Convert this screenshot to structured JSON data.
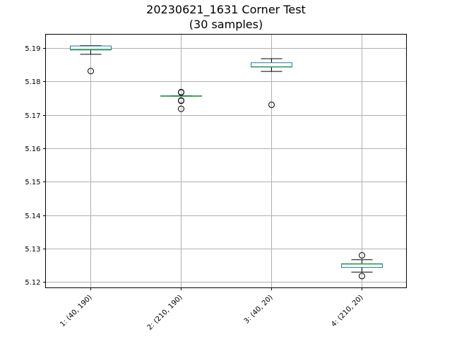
{
  "chart_data": {
    "type": "box",
    "title_line1": "20230621_1631 Corner Test",
    "title_line2": "(30 samples)",
    "categories": [
      "1: (40, 190)",
      "2: (210, 190)",
      "3: (40, 20)",
      "4: (210, 20)"
    ],
    "ylim": [
      5.1183,
      5.1941
    ],
    "yticks": [
      5.12,
      5.13,
      5.14,
      5.15,
      5.16,
      5.17,
      5.18,
      5.19
    ],
    "grid": true,
    "box_color": "#1f77b4",
    "median_color": "#2ca02c",
    "whisker_color": "#000000",
    "grid_color": "#b0b0b0",
    "boxes": [
      {
        "whislo": 5.1881,
        "q1": 5.1894,
        "med": 5.1896,
        "q3": 5.1906,
        "whishi": 5.1907,
        "fliers": [
          5.1831
        ]
      },
      {
        "whislo": 5.1756,
        "q1": 5.1756,
        "med": 5.1756,
        "q3": 5.1757,
        "whishi": 5.1757,
        "fliers": [
          5.1768,
          5.1767,
          5.1743,
          5.1742,
          5.1718
        ]
      },
      {
        "whislo": 5.183,
        "q1": 5.1843,
        "med": 5.1844,
        "q3": 5.1856,
        "whishi": 5.1868,
        "fliers": [
          5.173
        ]
      },
      {
        "whislo": 5.123,
        "q1": 5.1244,
        "med": 5.1254,
        "q3": 5.1255,
        "whishi": 5.1267,
        "fliers": [
          5.128,
          5.1218
        ]
      }
    ]
  }
}
